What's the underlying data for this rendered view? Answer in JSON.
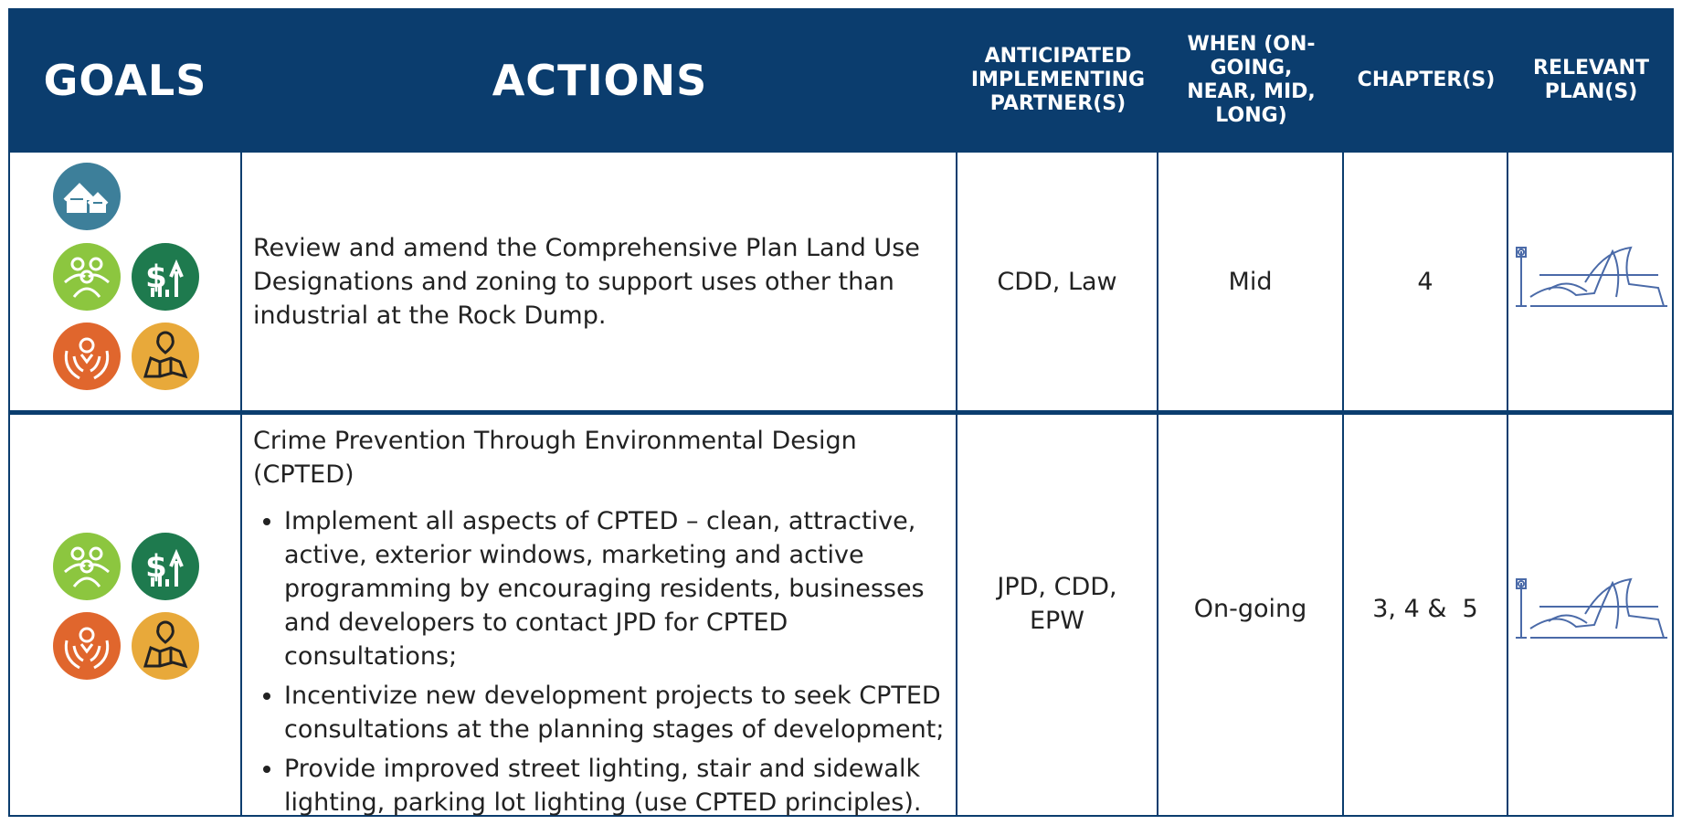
{
  "header": {
    "columns": [
      "GOALS",
      "ACTIONS",
      "ANTICIPATED IMPLEMENTING PARTNER(S)",
      "WHEN (ON-GOING, NEAR, MID, LONG)",
      "CHAPTER(S)",
      "RELEVANT PLAN(S)"
    ]
  },
  "table": {
    "rows": [
      {
        "action": "Review and amend the Comprehensive Plan Land Use Designations and zoning to support uses other than industrial at the Rock Dump.",
        "partners": "CDD, Law",
        "when": "Mid",
        "chapters": "4"
      },
      {
        "action_title": "Crime Prevention Through Environmental Design (CPTED)",
        "action_items": [
          "Implement all aspects of CPTED – clean, attractive, active, exterior windows, marketing and active programming by encouraging residents, businesses and developers to contact JPD for CPTED consultations;",
          "Incentivize new development projects to seek CPTED consultations at the planning stages of development;",
          "Provide improved street lighting, stair and sidewalk lighting, parking lot lighting (use CPTED principles)."
        ],
        "partners": "JPD, CDD, EPW",
        "when": "On-going",
        "chapters": "3, 4 &  5"
      }
    ]
  }
}
